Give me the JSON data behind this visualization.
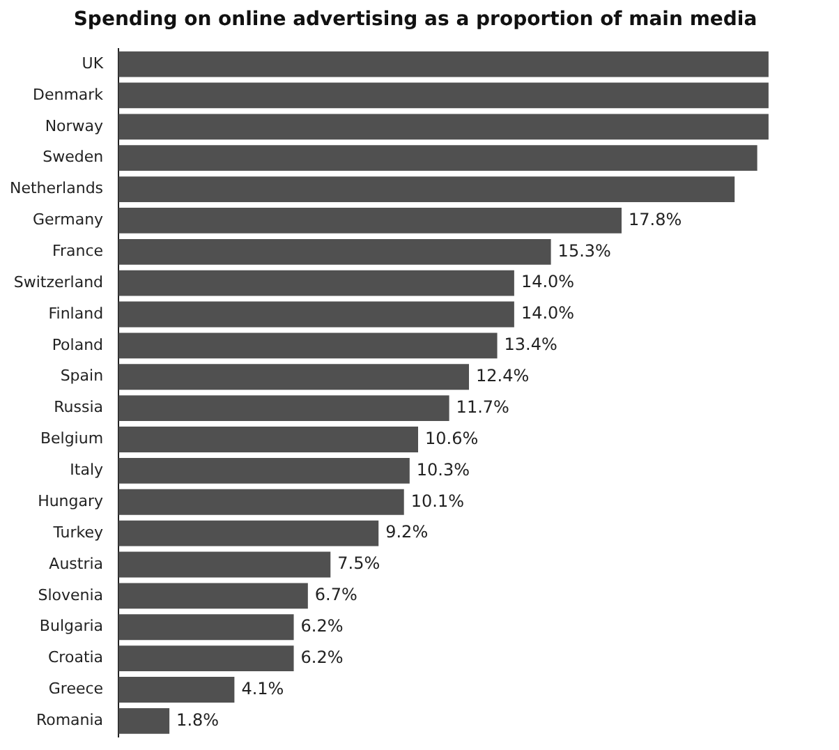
{
  "chart_data": {
    "type": "bar",
    "orientation": "horizontal",
    "title": "Spending on online advertising as a proportion of main media",
    "categories": [
      "UK",
      "Denmark",
      "Norway",
      "Sweden",
      "Netherlands",
      "Germany",
      "France",
      "Switzerland",
      "Finland",
      "Poland",
      "Spain",
      "Russia",
      "Belgium",
      "Italy",
      "Hungary",
      "Turkey",
      "Austria",
      "Slovenia",
      "Bulgaria",
      "Croatia",
      "Greece",
      "Romania"
    ],
    "values": [
      23.0,
      23.0,
      23.0,
      22.6,
      21.8,
      17.8,
      15.3,
      14.0,
      14.0,
      13.4,
      12.4,
      11.7,
      10.6,
      10.3,
      10.1,
      9.2,
      7.5,
      6.7,
      6.2,
      6.2,
      4.1,
      1.8
    ],
    "value_labels": [
      null,
      null,
      null,
      null,
      null,
      "17.8%",
      "15.3%",
      "14.0%",
      "14.0%",
      "13.4%",
      "12.4%",
      "11.7%",
      "10.6%",
      "10.3%",
      "10.1%",
      "9.2%",
      "7.5%",
      "6.7%",
      "6.2%",
      "6.2%",
      "4.1%",
      "1.8%"
    ],
    "color": "#505050",
    "legend": false
  }
}
